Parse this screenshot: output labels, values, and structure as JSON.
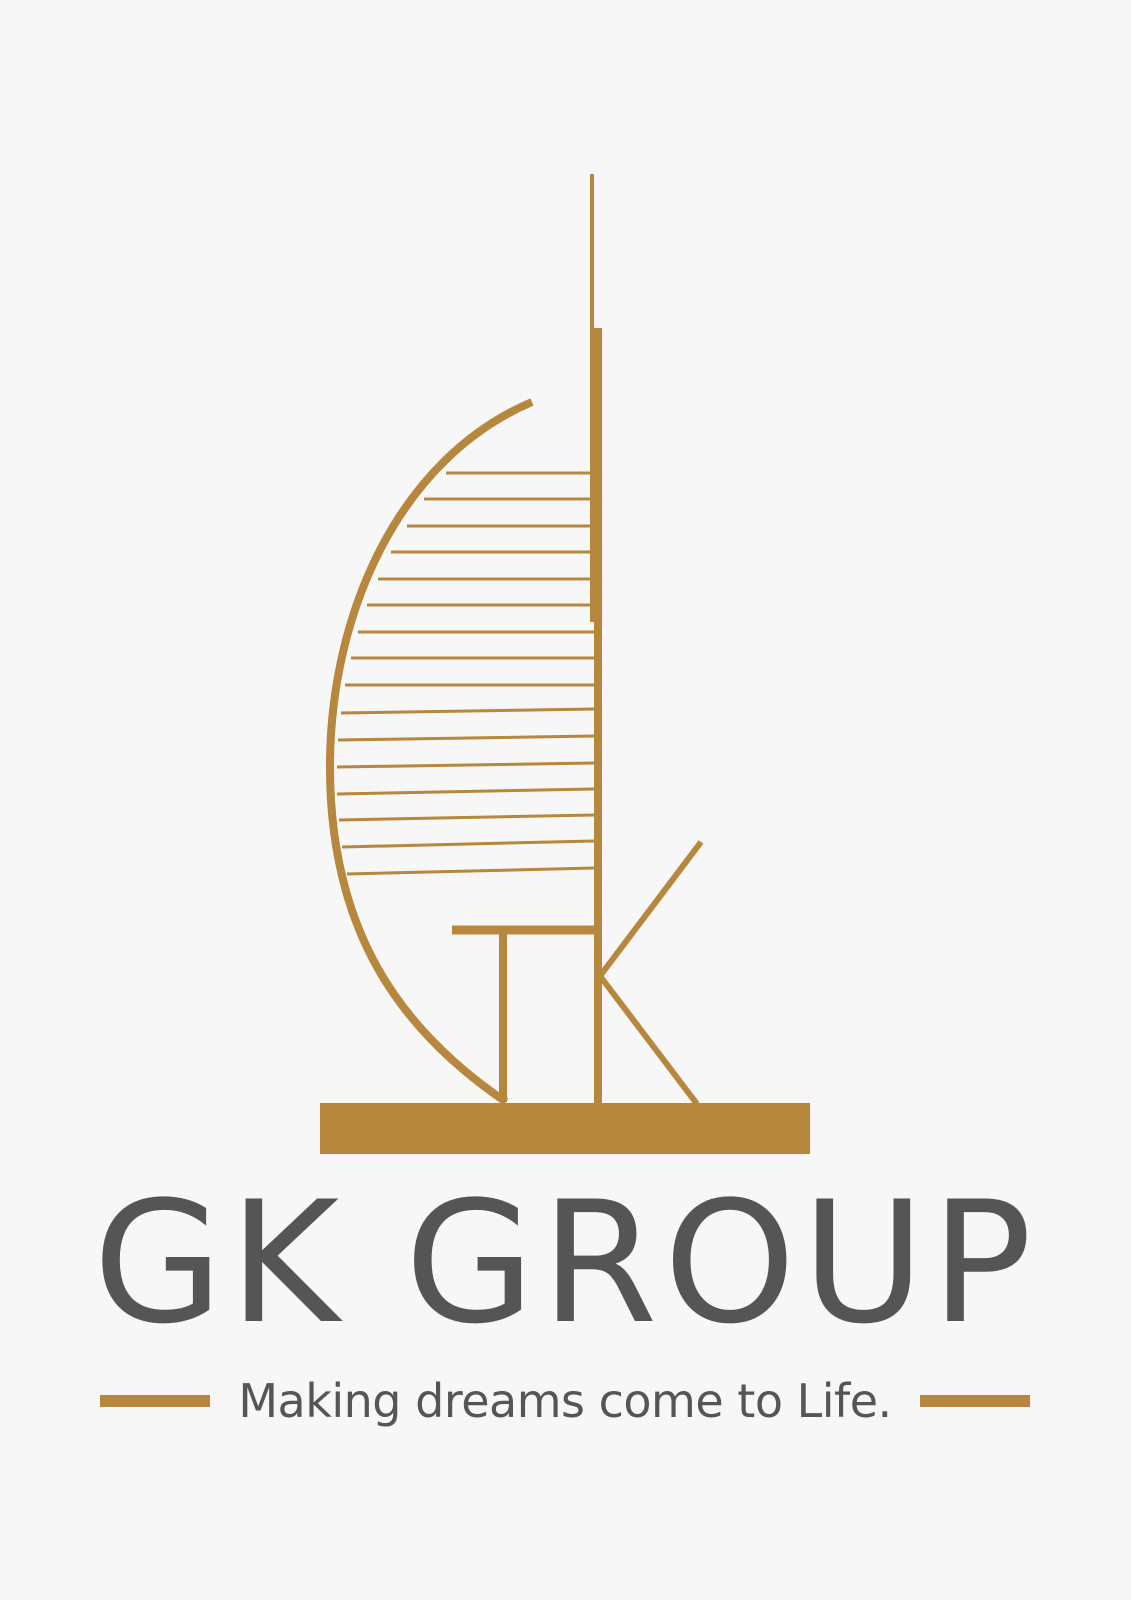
{
  "brand": {
    "name": "GK GROUP",
    "tagline": "Making dreams come to Life."
  },
  "colors": {
    "gold": "#b6873d",
    "text_gray": "#555555",
    "background": "#f7f7f7"
  },
  "logo": {
    "icon": "sail-tower-gk-monogram-icon"
  }
}
